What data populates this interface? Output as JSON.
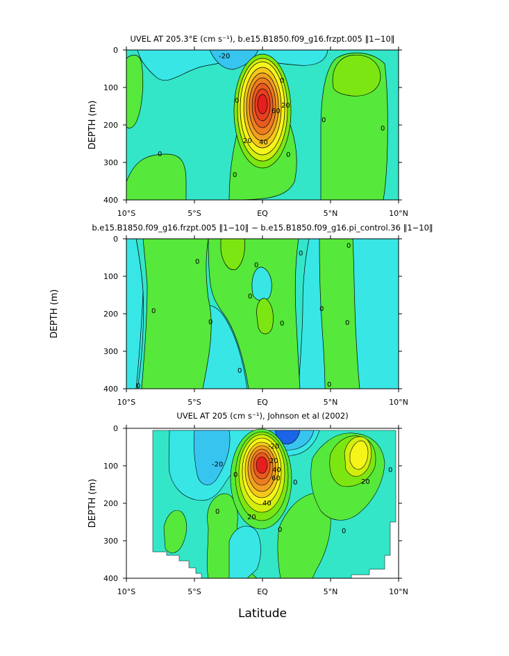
{
  "chart_data": [
    {
      "type": "heatmap",
      "title": "UVEL AT 205.3°E (cm s⁻¹), b.e15.B1850.f09_g16.frzpt.005 ‖1−10‖",
      "xlabel": "",
      "ylabel": "DEPTH (m)",
      "xlim": [
        -10,
        10
      ],
      "ylim": [
        400,
        0
      ],
      "xticks": [
        "10°S",
        "5°S",
        "EQ",
        "5°N",
        "10°N"
      ],
      "yticks": [
        "0",
        "100",
        "200",
        "300",
        "400"
      ],
      "contour_labels": [
        "-20",
        "0",
        "0",
        "20",
        "20",
        "40",
        "60",
        "0",
        "0",
        "0",
        "0",
        "0"
      ],
      "core": {
        "lat": 0,
        "depth": 150,
        "max": 100
      },
      "colors": {
        "deep_neg": "#1a64e8",
        "neg_mid": "#37c5ef",
        "neg": "#38e6e6",
        "zero": "#33e6c8",
        "pos": "#56e83a",
        "pos_mid": "#7ce612",
        "warm1": "#d2ee0f",
        "warm2": "#f5f51a",
        "warm3": "#f5c81a",
        "warm4": "#f0a020",
        "warm5": "#ee7d20",
        "warm6": "#e85a20",
        "hot": "#e61e1e"
      }
    },
    {
      "type": "heatmap",
      "title": "b.e15.B1850.f09_g16.frzpt.005 ‖1−10‖ − b.e15.B1850.f09_g16.pi_control.36 ‖1−10‖",
      "xlabel": "",
      "ylabel": "DEPTH (m)",
      "xlim": [
        -10,
        10
      ],
      "ylim": [
        400,
        0
      ],
      "xticks": [
        "10°S",
        "5°S",
        "EQ",
        "5°N",
        "10°N"
      ],
      "yticks": [
        "0",
        "100",
        "200",
        "300",
        "400"
      ],
      "contour_labels": [
        "0",
        "0",
        "0",
        "0",
        "0",
        "0",
        "0",
        "0",
        "0",
        "0",
        "0",
        "0",
        "0"
      ]
    },
    {
      "type": "heatmap",
      "title": "UVEL AT 205 (cm s⁻¹), Johnson et al (2002)",
      "xlabel": "Latitude",
      "ylabel": "DEPTH (m)",
      "xlim": [
        -10,
        10
      ],
      "ylim": [
        400,
        0
      ],
      "xticks": [
        "10°S",
        "5°S",
        "EQ",
        "5°N",
        "10°N"
      ],
      "yticks": [
        "0",
        "100",
        "200",
        "300",
        "400"
      ],
      "contour_labels": [
        "-20",
        "-20",
        "20",
        "40",
        "60",
        "40",
        "20",
        "20",
        "0",
        "0",
        "0",
        "0",
        "0",
        "0"
      ],
      "core": {
        "lat": 0,
        "depth": 130,
        "max": 100
      }
    }
  ]
}
